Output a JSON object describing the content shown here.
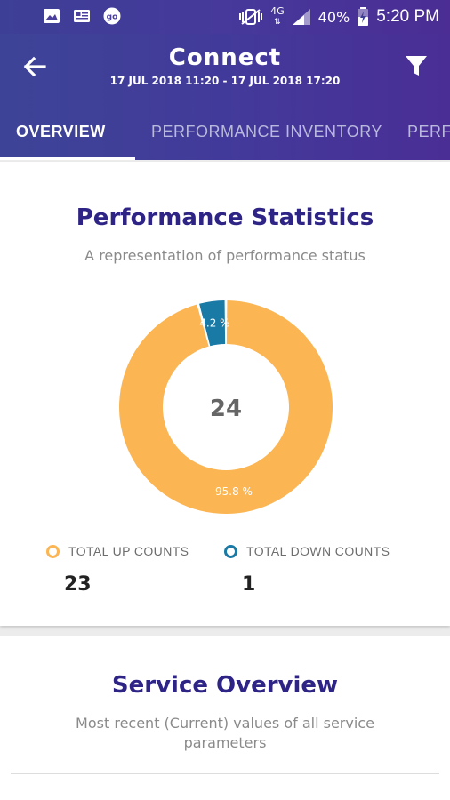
{
  "status_bar": {
    "time": "5:20 PM",
    "battery": "40%",
    "network": "4G",
    "left_icons": [
      "image-icon",
      "news-icon",
      "go-icon"
    ],
    "go_label": "go"
  },
  "app_bar": {
    "title": "Connect",
    "date_range": "17 JUL 2018 11:20 - 17 JUL 2018 17:20",
    "tabs": [
      {
        "label": "OVERVIEW",
        "active": true
      },
      {
        "label": "PERFORMANCE INVENTORY",
        "active": false
      },
      {
        "label": "PERFO",
        "active": false
      }
    ]
  },
  "performance_statistics": {
    "title": "Performance Statistics",
    "subtitle": "A representation of performance status",
    "center_value": "24",
    "legend": [
      {
        "label": "TOTAL UP COUNTS",
        "count": "23",
        "color": "#fbb552"
      },
      {
        "label": "TOTAL DOWN COUNTS",
        "count": "1",
        "color": "#1a7aa6"
      }
    ]
  },
  "chart_data": {
    "type": "pie",
    "categories": [
      "TOTAL UP COUNTS",
      "TOTAL DOWN COUNTS"
    ],
    "values": [
      95.8,
      4.2
    ],
    "data_labels": [
      "95.8 %",
      "4.2 %"
    ],
    "colors": [
      "#fbb552",
      "#1a7aa6"
    ],
    "center_label": "24"
  },
  "service_overview": {
    "title": "Service Overview",
    "subtitle": "Most recent (Current) values of all service parameters"
  }
}
